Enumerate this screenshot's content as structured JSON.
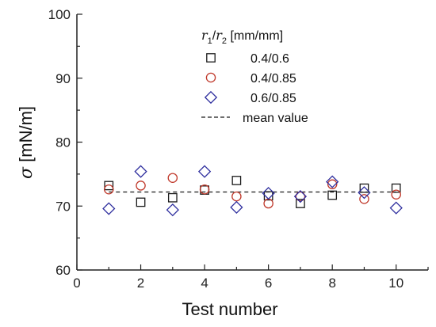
{
  "chart_data": {
    "type": "scatter",
    "xlabel": "Test number",
    "ylabel_symbol": "σ",
    "ylabel_unit": " [mN/m]",
    "xlim": [
      0,
      11
    ],
    "ylim": [
      60,
      100
    ],
    "xticks": [
      0,
      2,
      4,
      6,
      8,
      10
    ],
    "yticks": [
      60,
      70,
      80,
      90,
      100
    ],
    "x_minor_step": 1,
    "y_minor_step": 5,
    "grid": false,
    "legend_placement": "top-right",
    "legend_title": {
      "r1": "r",
      "r1_sub": "1",
      "slash": "/",
      "r2": "r",
      "r2_sub": "2",
      "unit": " [mm/mm]"
    },
    "series": [
      {
        "name": "0.4/0.6",
        "marker": "square",
        "color": "#1a1a1a",
        "x": [
          1,
          2,
          3,
          4,
          5,
          6,
          7,
          8,
          9,
          10
        ],
        "y": [
          73.2,
          70.6,
          71.3,
          72.5,
          74.0,
          71.6,
          70.4,
          71.7,
          72.8,
          72.8
        ]
      },
      {
        "name": "0.4/0.85",
        "marker": "circle",
        "color": "#c0392b",
        "x": [
          1,
          2,
          3,
          4,
          5,
          6,
          7,
          8,
          9,
          10
        ],
        "y": [
          72.6,
          73.2,
          74.4,
          72.6,
          71.5,
          70.4,
          71.5,
          73.4,
          71.1,
          71.8
        ]
      },
      {
        "name": "0.6/0.85",
        "marker": "diamond",
        "color": "#2e2e9e",
        "x": [
          1,
          2,
          3,
          4,
          5,
          6,
          7,
          8,
          9,
          10
        ],
        "y": [
          69.6,
          75.4,
          69.4,
          75.4,
          69.8,
          72.0,
          71.5,
          73.8,
          72.1,
          69.7
        ]
      }
    ],
    "mean_line": {
      "name": "mean value",
      "y": 72.2,
      "style": "dashed",
      "color": "#1a1a1a"
    }
  }
}
